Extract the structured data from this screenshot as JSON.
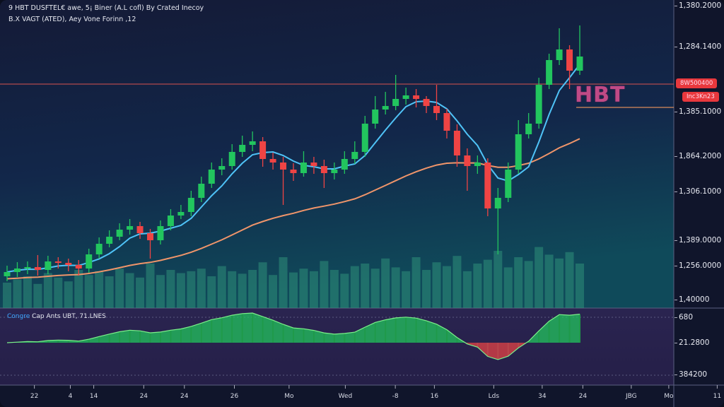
{
  "header": {
    "line1": "9 HBT DUSFTEL€ awe, 5¡ Biner (A.L cofl) By Crated Inecoy",
    "line2": "B.X VAGT (ATED), Aey Vone Forinn ,12"
  },
  "logo_text": "HBT",
  "oscillator": {
    "label_highlight": "Congre",
    "label_rest": "Cap Ants UBT, 71.LNES",
    "axis_labels": [
      "680",
      "21.2800",
      "384200"
    ]
  },
  "price_tags": [
    "8W500400",
    "Inc3Kn23"
  ],
  "colors": {
    "bull": "#22c55e",
    "bear": "#ef4444",
    "fast_ma": "#4fc3f7",
    "slow_ma": "#f0956a",
    "line_red": "#d9534f",
    "line_orange": "#d98a5a",
    "volume": "#2f8f7a"
  },
  "chart_data": {
    "type": "candlestick",
    "title": "HBT",
    "ylim": [
      1000,
      1436
    ],
    "y_tick_labels": [
      "1,380.2000",
      "1,284.1400",
      "1,385.1000",
      "1,864.2000",
      "1,306.1000",
      "1,389.0000",
      "1,256.0000",
      "1,40000"
    ],
    "x_tick_labels": [
      "22",
      "4",
      "14",
      "24",
      "24",
      "26",
      "Mo",
      "Wed",
      "-8",
      "16",
      "Lds",
      "34",
      "24",
      "JBG",
      "Mo",
      "11"
    ],
    "horizontal_lines": [
      1317,
      1284
    ],
    "candles": [
      [
        1045,
        1060,
        1038,
        1051
      ],
      [
        1051,
        1065,
        1044,
        1056
      ],
      [
        1056,
        1066,
        1048,
        1058
      ],
      [
        1058,
        1075,
        1046,
        1054
      ],
      [
        1054,
        1074,
        1048,
        1066
      ],
      [
        1066,
        1072,
        1056,
        1064
      ],
      [
        1064,
        1070,
        1052,
        1061
      ],
      [
        1061,
        1068,
        1046,
        1056
      ],
      [
        1056,
        1084,
        1050,
        1076
      ],
      [
        1076,
        1100,
        1070,
        1091
      ],
      [
        1091,
        1110,
        1086,
        1101
      ],
      [
        1101,
        1120,
        1096,
        1111
      ],
      [
        1111,
        1126,
        1104,
        1116
      ],
      [
        1116,
        1122,
        1098,
        1106
      ],
      [
        1106,
        1112,
        1070,
        1096
      ],
      [
        1096,
        1124,
        1090,
        1116
      ],
      [
        1116,
        1140,
        1110,
        1131
      ],
      [
        1131,
        1146,
        1126,
        1136
      ],
      [
        1136,
        1166,
        1130,
        1156
      ],
      [
        1156,
        1186,
        1150,
        1176
      ],
      [
        1176,
        1206,
        1170,
        1196
      ],
      [
        1196,
        1212,
        1188,
        1201
      ],
      [
        1201,
        1232,
        1196,
        1221
      ],
      [
        1221,
        1244,
        1214,
        1231
      ],
      [
        1231,
        1250,
        1222,
        1236
      ],
      [
        1236,
        1242,
        1200,
        1211
      ],
      [
        1211,
        1220,
        1196,
        1206
      ],
      [
        1206,
        1214,
        1146,
        1196
      ],
      [
        1196,
        1205,
        1180,
        1191
      ],
      [
        1191,
        1222,
        1186,
        1206
      ],
      [
        1206,
        1214,
        1190,
        1201
      ],
      [
        1201,
        1210,
        1170,
        1191
      ],
      [
        1191,
        1206,
        1182,
        1196
      ],
      [
        1196,
        1222,
        1190,
        1211
      ],
      [
        1211,
        1236,
        1204,
        1221
      ],
      [
        1221,
        1272,
        1214,
        1261
      ],
      [
        1261,
        1300,
        1254,
        1281
      ],
      [
        1281,
        1306,
        1274,
        1286
      ],
      [
        1286,
        1330,
        1280,
        1296
      ],
      [
        1296,
        1312,
        1288,
        1301
      ],
      [
        1301,
        1310,
        1284,
        1296
      ],
      [
        1296,
        1300,
        1276,
        1286
      ],
      [
        1286,
        1316,
        1266,
        1276
      ],
      [
        1276,
        1282,
        1240,
        1251
      ],
      [
        1251,
        1260,
        1200,
        1216
      ],
      [
        1216,
        1226,
        1166,
        1201
      ],
      [
        1201,
        1216,
        1190,
        1206
      ],
      [
        1206,
        1212,
        1130,
        1141
      ],
      [
        1141,
        1170,
        1076,
        1156
      ],
      [
        1156,
        1206,
        1150,
        1196
      ],
      [
        1196,
        1266,
        1190,
        1246
      ],
      [
        1246,
        1276,
        1240,
        1261
      ],
      [
        1261,
        1326,
        1254,
        1316
      ],
      [
        1316,
        1360,
        1310,
        1351
      ],
      [
        1351,
        1396,
        1344,
        1366
      ],
      [
        1366,
        1372,
        1310,
        1336
      ],
      [
        1336,
        1400,
        1330,
        1356
      ]
    ],
    "volume": [
      40,
      45,
      50,
      38,
      55,
      48,
      42,
      60,
      52,
      58,
      50,
      62,
      55,
      48,
      70,
      52,
      60,
      55,
      58,
      62,
      50,
      66,
      58,
      54,
      60,
      72,
      52,
      80,
      56,
      62,
      58,
      74,
      60,
      54,
      66,
      70,
      62,
      78,
      64,
      58,
      80,
      60,
      72,
      66,
      82,
      58,
      70,
      76,
      90,
      64,
      80,
      74,
      96,
      84,
      78,
      88,
      70
    ],
    "fast_ma_period": 5,
    "slow_ma_alpha": 0.055
  }
}
